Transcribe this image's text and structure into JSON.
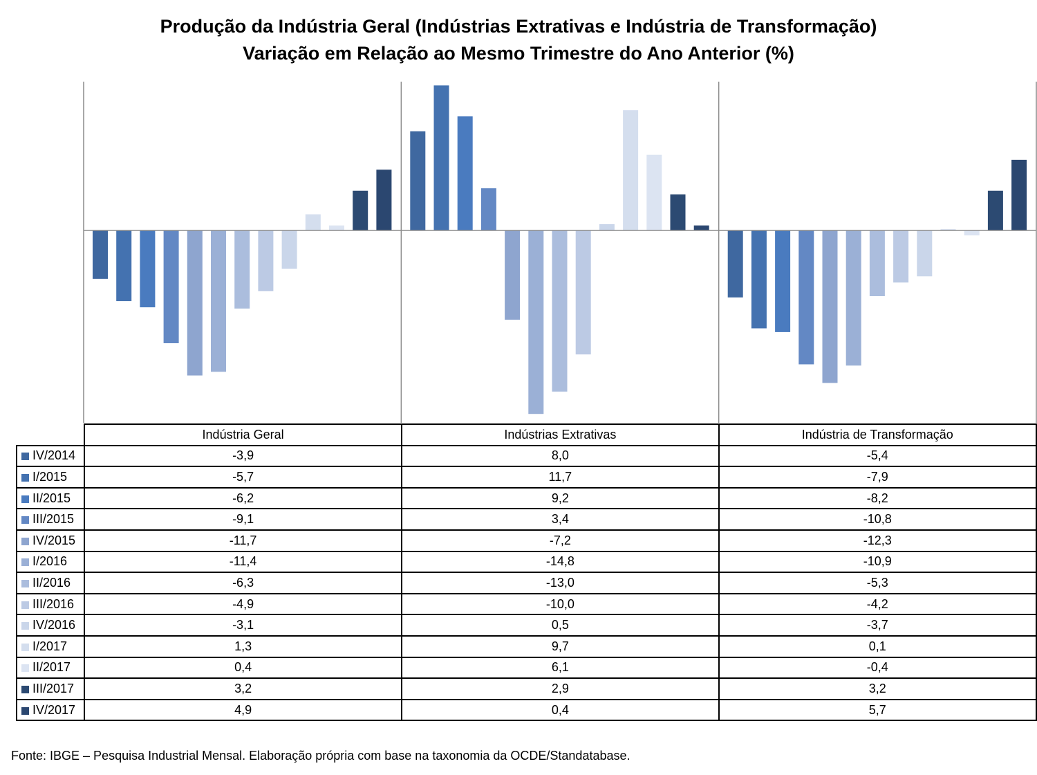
{
  "chart_data": {
    "type": "bar",
    "title": "Produção da Indústria Geral (Indústrias Extrativas e Indústria de Transformação)",
    "subtitle": "Variação em Relação ao Mesmo Trimestre do Ano Anterior (%)",
    "categories": [
      "Indústria Geral",
      "Indústrias Extrativas",
      "Indústria de Transformação"
    ],
    "series": [
      {
        "name": "IV/2014",
        "color": "#3f68a0",
        "values": [
          -3.9,
          8.0,
          -5.4
        ]
      },
      {
        "name": "I/2015",
        "color": "#4472b0",
        "values": [
          -5.7,
          11.7,
          -7.9
        ]
      },
      {
        "name": "II/2015",
        "color": "#4a7bbf",
        "values": [
          -6.2,
          9.2,
          -8.2
        ]
      },
      {
        "name": "III/2015",
        "color": "#6388c4",
        "values": [
          -9.1,
          3.4,
          -10.8
        ]
      },
      {
        "name": "IV/2015",
        "color": "#8ea5cf",
        "values": [
          -11.7,
          -7.2,
          -12.3
        ]
      },
      {
        "name": "I/2016",
        "color": "#9bb0d6",
        "values": [
          -11.4,
          -14.8,
          -10.9
        ]
      },
      {
        "name": "II/2016",
        "color": "#abbddd",
        "values": [
          -6.3,
          -13.0,
          -5.3
        ]
      },
      {
        "name": "III/2016",
        "color": "#bccae4",
        "values": [
          -4.9,
          -10.0,
          -4.2
        ]
      },
      {
        "name": "IV/2016",
        "color": "#cad6ea",
        "values": [
          -3.1,
          0.5,
          -3.7
        ]
      },
      {
        "name": "I/2017",
        "color": "#d4deee",
        "values": [
          1.3,
          9.7,
          0.1
        ]
      },
      {
        "name": "II/2017",
        "color": "#dce4f2",
        "values": [
          0.4,
          6.1,
          -0.4
        ]
      },
      {
        "name": "III/2017",
        "color": "#2c4a72",
        "values": [
          3.2,
          2.9,
          3.2
        ]
      },
      {
        "name": "IV/2017",
        "color": "#2b4770",
        "values": [
          4.9,
          0.4,
          5.7
        ]
      }
    ],
    "display_values": [
      [
        "-3,9",
        "8,0",
        "-5,4"
      ],
      [
        "-5,7",
        "11,7",
        "-7,9"
      ],
      [
        "-6,2",
        "9,2",
        "-8,2"
      ],
      [
        "-9,1",
        "3,4",
        "-10,8"
      ],
      [
        "-11,7",
        "-7,2",
        "-12,3"
      ],
      [
        "-11,4",
        "-14,8",
        "-10,9"
      ],
      [
        "-6,3",
        "-13,0",
        "-5,3"
      ],
      [
        "-4,9",
        "-10,0",
        "-4,2"
      ],
      [
        "-3,1",
        "0,5",
        "-3,7"
      ],
      [
        "1,3",
        "9,7",
        "0,1"
      ],
      [
        "0,4",
        "6,1",
        "-0,4"
      ],
      [
        "3,2",
        "2,9",
        "3,2"
      ],
      [
        "4,9",
        "0,4",
        "5,7"
      ]
    ],
    "ylim": [
      -15.2,
      12.0
    ],
    "grid": false,
    "legend": "data-table-below"
  },
  "source": "Fonte: IBGE – Pesquisa Industrial Mensal. Elaboração própria com base na taxonomia da OCDE/Standatabase."
}
